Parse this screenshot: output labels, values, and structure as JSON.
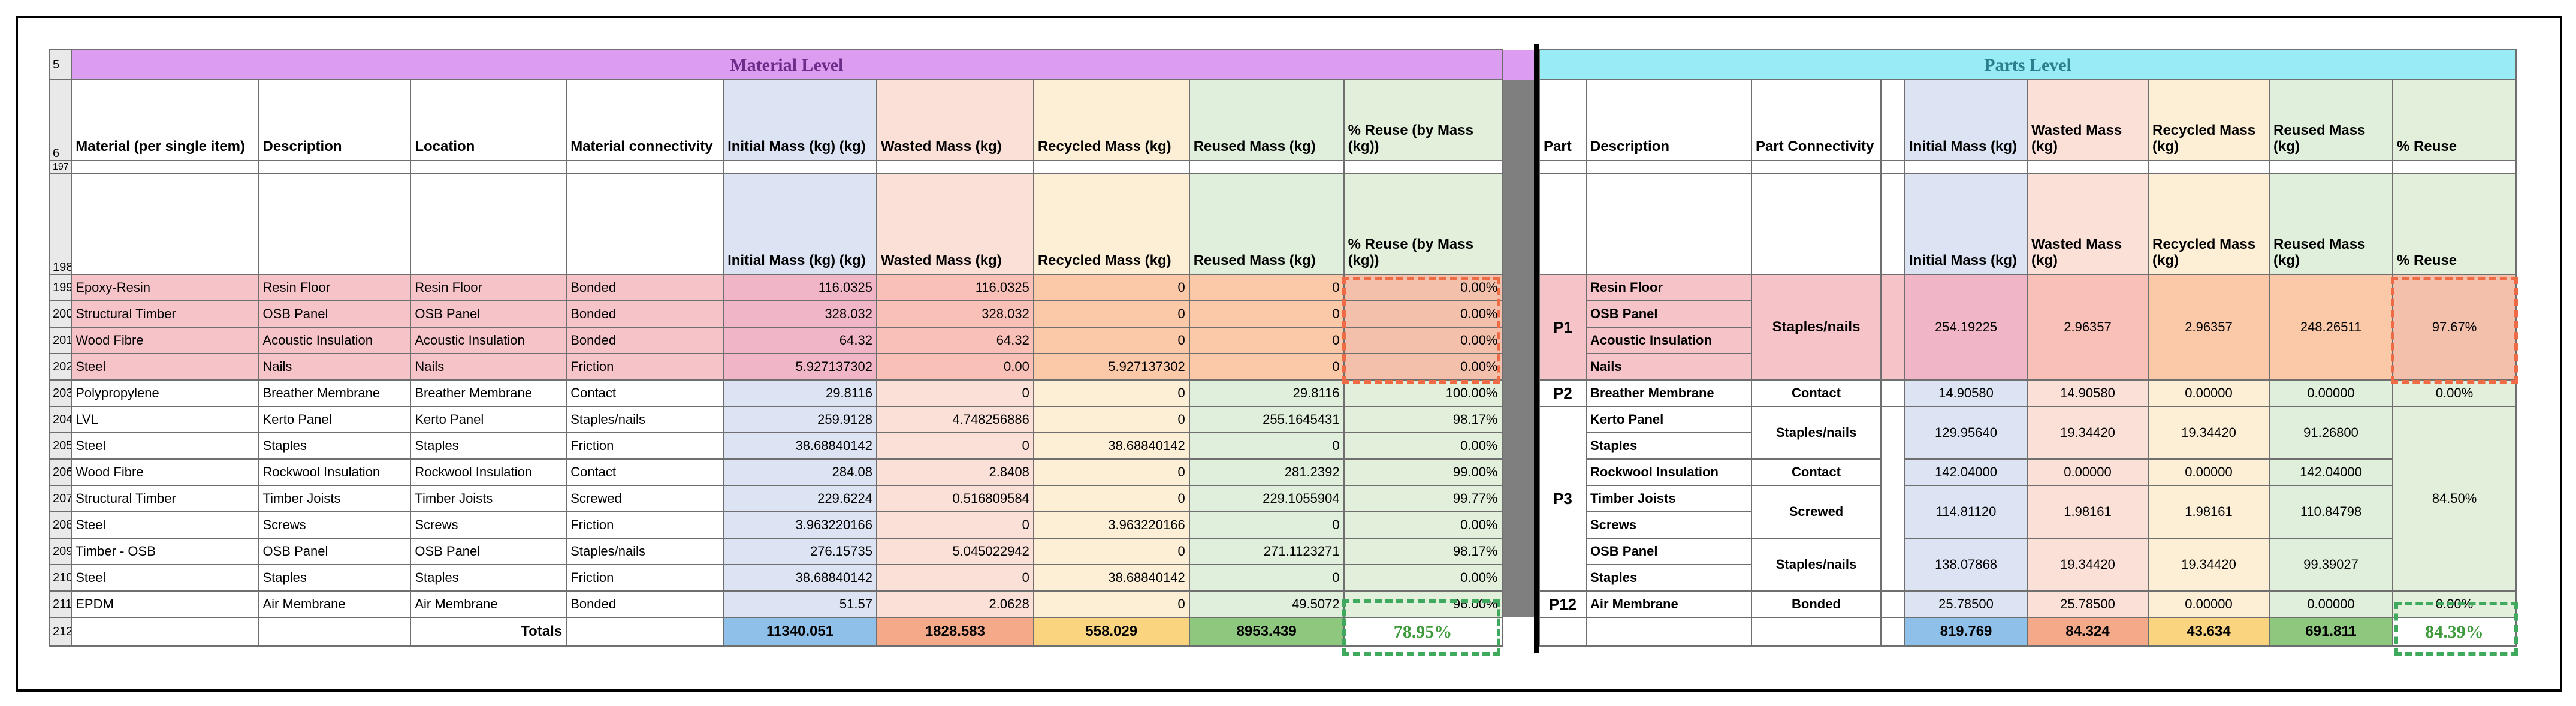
{
  "material": {
    "banner_row": "5",
    "banner": "Material Level",
    "header_row": "6",
    "headers": {
      "material": "Material (per single item)",
      "description": "Description",
      "location": "Location",
      "connectivity": "Material connectivity",
      "initial": "Initial Mass (kg) (kg)",
      "wasted": "Wasted Mass (kg)",
      "recycled": "Recycled Mass (kg)",
      "reused": "Reused Mass (kg)",
      "pct": "% Reuse (by Mass (kg))"
    },
    "row_197": "197",
    "row_198": "198",
    "rows": [
      {
        "n": "199",
        "material": "Epoxy-Resin",
        "description": "Resin Floor",
        "location": "Resin Floor",
        "connectivity": "Bonded",
        "initial": "116.0325",
        "wasted": "116.0325",
        "recycled": "0",
        "reused": "0",
        "pct": "0.00%"
      },
      {
        "n": "200",
        "material": "Structural Timber",
        "description": "OSB Panel",
        "location": "OSB Panel",
        "connectivity": "Bonded",
        "initial": "328.032",
        "wasted": "328.032",
        "recycled": "0",
        "reused": "0",
        "pct": "0.00%"
      },
      {
        "n": "201",
        "material": "Wood Fibre",
        "description": "Acoustic Insulation",
        "location": "Acoustic Insulation",
        "connectivity": "Bonded",
        "initial": "64.32",
        "wasted": "64.32",
        "recycled": "0",
        "reused": "0",
        "pct": "0.00%"
      },
      {
        "n": "202",
        "material": "Steel",
        "description": "Nails",
        "location": "Nails",
        "connectivity": "Friction",
        "initial": "5.927137302",
        "wasted": "0.00",
        "recycled": "5.927137302",
        "reused": "0",
        "pct": "0.00%"
      },
      {
        "n": "203",
        "material": "Polypropylene",
        "description": "Breather Membrane",
        "location": "Breather Membrane",
        "connectivity": "Contact",
        "initial": "29.8116",
        "wasted": "0",
        "recycled": "0",
        "reused": "29.8116",
        "pct": "100.00%"
      },
      {
        "n": "204",
        "material": "LVL",
        "description": "Kerto Panel",
        "location": "Kerto Panel",
        "connectivity": "Staples/nails",
        "initial": "259.9128",
        "wasted": "4.748256886",
        "recycled": "0",
        "reused": "255.1645431",
        "pct": "98.17%"
      },
      {
        "n": "205",
        "material": "Steel",
        "description": "Staples",
        "location": "Staples",
        "connectivity": "Friction",
        "initial": "38.68840142",
        "wasted": "0",
        "recycled": "38.68840142",
        "reused": "0",
        "pct": "0.00%"
      },
      {
        "n": "206",
        "material": "Wood Fibre",
        "description": "Rockwool Insulation",
        "location": "Rockwool Insulation",
        "connectivity": "Contact",
        "initial": "284.08",
        "wasted": "2.8408",
        "recycled": "0",
        "reused": "281.2392",
        "pct": "99.00%"
      },
      {
        "n": "207",
        "material": "Structural Timber",
        "description": "Timber Joists",
        "location": "Timber Joists",
        "connectivity": "Screwed",
        "initial": "229.6224",
        "wasted": "0.516809584",
        "recycled": "0",
        "reused": "229.1055904",
        "pct": "99.77%"
      },
      {
        "n": "208",
        "material": "Steel",
        "description": "Screws",
        "location": "Screws",
        "connectivity": "Friction",
        "initial": "3.963220166",
        "wasted": "0",
        "recycled": "3.963220166",
        "reused": "0",
        "pct": "0.00%"
      },
      {
        "n": "209",
        "material": "Timber - OSB",
        "description": "OSB Panel",
        "location": "OSB Panel",
        "connectivity": "Staples/nails",
        "initial": "276.15735",
        "wasted": "5.045022942",
        "recycled": "0",
        "reused": "271.1123271",
        "pct": "98.17%"
      },
      {
        "n": "210",
        "material": "Steel",
        "description": "Staples",
        "location": "Staples",
        "connectivity": "Friction",
        "initial": "38.68840142",
        "wasted": "0",
        "recycled": "38.68840142",
        "reused": "0",
        "pct": "0.00%"
      },
      {
        "n": "211",
        "material": "EPDM",
        "description": "Air Membrane",
        "location": "Air Membrane",
        "connectivity": "Bonded",
        "initial": "51.57",
        "wasted": "2.0628",
        "recycled": "0",
        "reused": "49.5072",
        "pct": "96.00%"
      }
    ],
    "totals": {
      "n": "212",
      "label": "Totals",
      "initial": "11340.051",
      "wasted": "1828.583",
      "recycled": "558.029",
      "reused": "8953.439",
      "pct": "78.95%"
    }
  },
  "parts": {
    "banner": "Parts Level",
    "headers": {
      "part": "Part",
      "description": "Description",
      "connectivity": "Part Connectivity",
      "initial": "Initial Mass (kg)",
      "wasted": "Wasted Mass (kg)",
      "recycled": "Recycled Mass (kg)",
      "reused": "Reused Mass (kg)",
      "pct": "% Reuse"
    },
    "p1": {
      "part": "P1",
      "descs": [
        "Resin Floor",
        "OSB Panel",
        "Acoustic Insulation",
        "Nails"
      ],
      "connectivity": "Staples/nails",
      "initial": "254.19225",
      "wasted": "2.96357",
      "recycled": "2.96357",
      "reused": "248.26511",
      "pct": "97.67%"
    },
    "p2": {
      "part": "P2",
      "desc": "Breather Membrane",
      "connectivity": "Contact",
      "initial": "14.90580",
      "wasted": "14.90580",
      "recycled": "0.00000",
      "reused": "0.00000",
      "pct": "0.00%"
    },
    "p3": {
      "part": "P3",
      "pct": "84.50%",
      "groups": [
        {
          "descs": [
            "Kerto Panel",
            "Staples"
          ],
          "connectivity": "Staples/nails",
          "initial": "129.95640",
          "wasted": "19.34420",
          "recycled": "19.34420",
          "reused": "91.26800"
        },
        {
          "descs": [
            "Rockwool Insulation"
          ],
          "connectivity": "Contact",
          "initial": "142.04000",
          "wasted": "0.00000",
          "recycled": "0.00000",
          "reused": "142.04000"
        },
        {
          "descs": [
            "Timber Joists",
            "Screws"
          ],
          "connectivity": "Screwed",
          "initial": "114.81120",
          "wasted": "1.98161",
          "recycled": "1.98161",
          "reused": "110.84798"
        },
        {
          "descs": [
            "OSB Panel",
            "Staples"
          ],
          "connectivity": "Staples/nails",
          "initial": "138.07868",
          "wasted": "19.34420",
          "recycled": "19.34420",
          "reused": "99.39027"
        }
      ]
    },
    "p12": {
      "part": "P12",
      "desc": "Air Membrane",
      "connectivity": "Bonded",
      "initial": "25.78500",
      "wasted": "25.78500",
      "recycled": "0.00000",
      "reused": "0.00000",
      "pct": "0.00%"
    },
    "totals": {
      "initial": "819.769",
      "wasted": "84.324",
      "recycled": "43.634",
      "reused": "691.811",
      "pct": "84.39%"
    }
  }
}
